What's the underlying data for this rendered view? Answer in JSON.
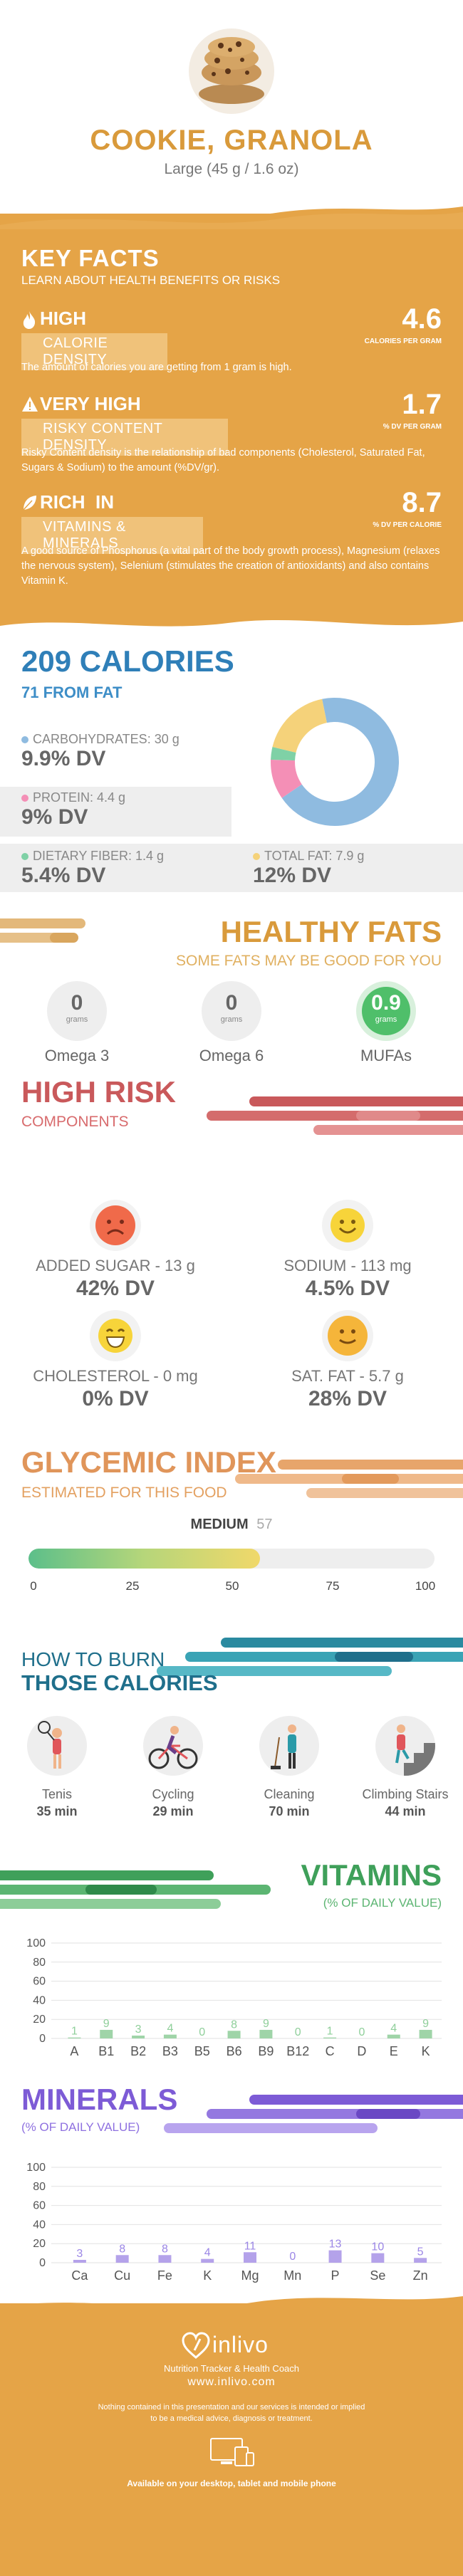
{
  "header": {
    "title": "COOKIE, GRANOLA",
    "serving": "Large (45 g / 1.6 oz)"
  },
  "key_facts": {
    "title": "KEY FACTS",
    "subtitle": "LEARN ABOUT HEALTH BENEFITS OR RISKS",
    "facts": [
      {
        "tag": "HIGH",
        "band": "CALORIE DENSITY",
        "description": "The amount of calories you are getting from 1 gram is high.",
        "value": "4.6",
        "unit": "CALORIES PER GRAM"
      },
      {
        "tag": "VERY HIGH",
        "band": "RISKY CONTENT DENSITY",
        "description": "Risky Content density is the relationship of bad components (Cholesterol, Saturated Fat, Sugars & Sodium) to the amount (%DV/gr).",
        "value": "1.7",
        "unit": "% DV PER GRAM"
      },
      {
        "tag": "RICH  IN",
        "band": "VITAMINS & MINERALS",
        "description": "A good source of Phosphorus (a vital part of the body growth process), Magnesium (relaxes the nervous system), Selenium (stimulates the creation of antioxidants) and also contains Vitamin K.",
        "value": "8.7",
        "unit": "% DV PER CALORIE"
      }
    ]
  },
  "calories": {
    "title": "209 CALORIES",
    "from_fat": "71 FROM FAT",
    "macros": [
      {
        "label": "CARBOHYDRATES: 30 g",
        "dv": "9.9% DV",
        "color": "#8fbbe0"
      },
      {
        "label": "PROTEIN: 4.4 g",
        "dv": "9% DV",
        "color": "#f48fb6"
      },
      {
        "label": "DIETARY FIBER: 1.4 g",
        "dv": "5.4% DV",
        "color": "#7fd1a6"
      },
      {
        "label": "TOTAL FAT: 7.9 g",
        "dv": "12% DV",
        "color": "#f5d27a"
      }
    ],
    "donut": [
      {
        "name": "carbohydrates",
        "value": 30,
        "color": "#8fbbe0"
      },
      {
        "name": "protein",
        "value": 4.4,
        "color": "#f48fb6"
      },
      {
        "name": "fiber",
        "value": 1.4,
        "color": "#7fd1a6"
      },
      {
        "name": "fat",
        "value": 7.9,
        "color": "#f5d27a"
      }
    ]
  },
  "healthy_fats": {
    "title": "HEALTHY FATS",
    "subtitle": "SOME FATS MAY BE GOOD FOR YOU",
    "items": [
      {
        "value": "0",
        "unit": "grams",
        "name": "Omega 3",
        "highlight": false
      },
      {
        "value": "0",
        "unit": "grams",
        "name": "Omega 6",
        "highlight": false
      },
      {
        "value": "0.9",
        "unit": "grams",
        "name": "MUFAs",
        "highlight": true
      }
    ]
  },
  "high_risk": {
    "title": "HIGH RISK",
    "subtitle": "COMPONENTS",
    "items": [
      {
        "label": "ADDED SUGAR - 13 g",
        "dv": "42% DV",
        "mood": "sad",
        "color": "#f06a4a"
      },
      {
        "label": "SODIUM - 113 mg",
        "dv": "4.5% DV",
        "mood": "happy",
        "color": "#f7d43a"
      },
      {
        "label": "CHOLESTEROL - 0 mg",
        "dv": "0% DV",
        "mood": "grin",
        "color": "#f7d43a"
      },
      {
        "label": "SAT. FAT - 5.7 g",
        "dv": "28% DV",
        "mood": "smile",
        "color": "#f5b53a"
      }
    ]
  },
  "glycemic": {
    "title": "GLYCEMIC INDEX",
    "subtitle": "ESTIMATED FOR THIS FOOD",
    "level": "MEDIUM",
    "value": 57,
    "value_label": "57",
    "ticks": [
      "0",
      "25",
      "50",
      "75",
      "100"
    ]
  },
  "burn": {
    "title_top": "HOW TO BURN",
    "title_bottom": "THOSE CALORIES",
    "activities": [
      {
        "name": "Tenis",
        "time": "35 min",
        "icon": "tennis-player-icon"
      },
      {
        "name": "Cycling",
        "time": "29 min",
        "icon": "cyclist-icon"
      },
      {
        "name": "Cleaning",
        "time": "70 min",
        "icon": "cleaning-person-icon"
      },
      {
        "name": "Climbing Stairs",
        "time": "44 min",
        "icon": "stairs-climber-icon"
      }
    ]
  },
  "chart_data": [
    {
      "type": "bar",
      "title": "VITAMINS",
      "subtitle": "(% OF DAILY VALUE)",
      "categories": [
        "A",
        "B1",
        "B2",
        "B3",
        "B5",
        "B6",
        "B9",
        "B12",
        "C",
        "D",
        "E",
        "K"
      ],
      "values": [
        1,
        9,
        3,
        4,
        0,
        8,
        9,
        0,
        1,
        0,
        4,
        9
      ],
      "yticks": [
        "0",
        "20",
        "40",
        "60",
        "80",
        "100"
      ],
      "ylim": [
        0,
        100
      ],
      "color": "#9fd4a8",
      "label_color": "#8fcf9a"
    },
    {
      "type": "bar",
      "title": "MINERALS",
      "subtitle": "(% OF DAILY VALUE)",
      "categories": [
        "Ca",
        "Cu",
        "Fe",
        "K",
        "Mg",
        "Mn",
        "P",
        "Se",
        "Zn"
      ],
      "values": [
        3,
        8,
        8,
        4,
        11,
        0,
        13,
        10,
        5
      ],
      "yticks": [
        "0",
        "20",
        "40",
        "60",
        "80",
        "100"
      ],
      "ylim": [
        0,
        100
      ],
      "color": "#b4a2ea",
      "label_color": "#9b86e6"
    }
  ],
  "footer": {
    "brand": "inlivo",
    "tagline": "Nutrition Tracker & Health Coach",
    "url": "www.inlivo.com",
    "disclaimer_1": "Nothing contained in this presentation and our services is intended or implied",
    "disclaimer_2": "to be a medical advice, diagnosis or treatment.",
    "available": "Available on your desktop, tablet and mobile phone"
  }
}
